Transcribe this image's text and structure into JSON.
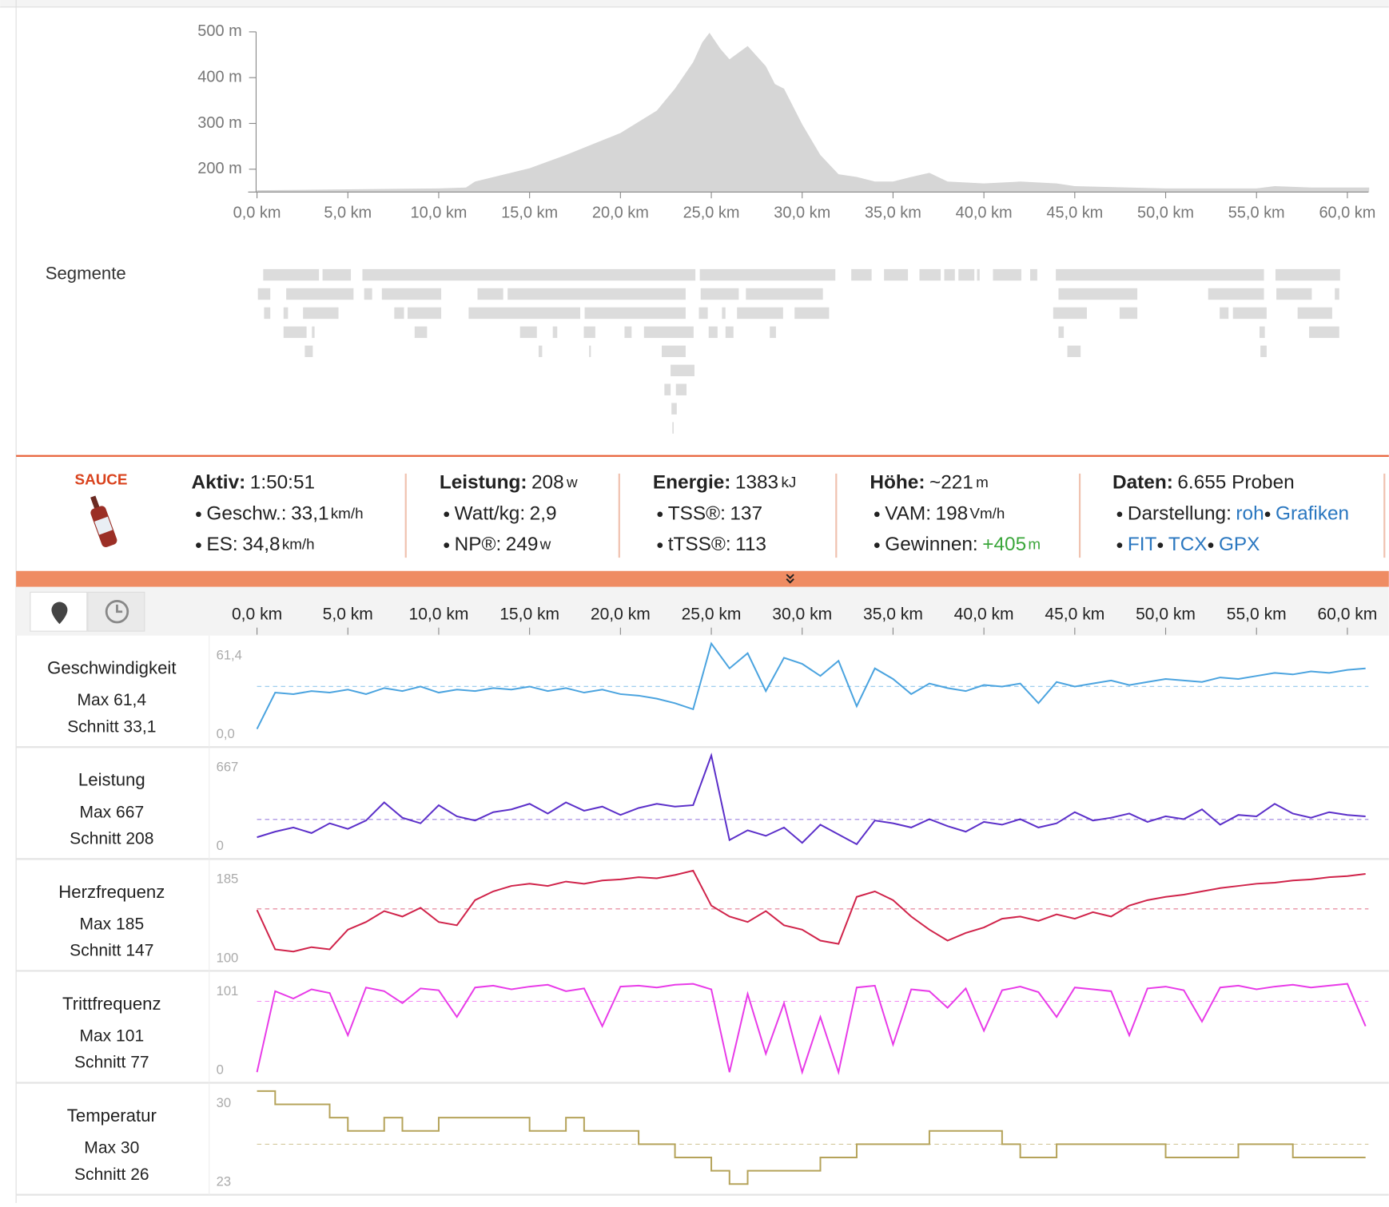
{
  "chart_data": [
    {
      "type": "area",
      "color": "#d6d6d6",
      "xlim": [
        0,
        61.2
      ],
      "ylim": [
        150,
        500
      ],
      "xticks": [
        {
          "value": 0,
          "label": "0,0 km"
        },
        {
          "value": 5,
          "label": "5,0 km"
        },
        {
          "value": 10,
          "label": "10,0 km"
        },
        {
          "value": 15,
          "label": "15,0 km"
        },
        {
          "value": 20,
          "label": "20,0 km"
        },
        {
          "value": 25,
          "label": "25,0 km"
        },
        {
          "value": 30,
          "label": "30,0 km"
        },
        {
          "value": 35,
          "label": "35,0 km"
        },
        {
          "value": 40,
          "label": "40,0 km"
        },
        {
          "value": 45,
          "label": "45,0 km"
        },
        {
          "value": 50,
          "label": "50,0 km"
        },
        {
          "value": 55,
          "label": "55,0 km"
        },
        {
          "value": 60,
          "label": "60,0 km"
        }
      ],
      "yticks": [
        {
          "value": 200,
          "label": "200 m"
        },
        {
          "value": 300,
          "label": "300 m"
        },
        {
          "value": 400,
          "label": "400 m"
        },
        {
          "value": 500,
          "label": "500 m"
        }
      ],
      "x": [
        0,
        5,
        10,
        11.5,
        12,
        15,
        17,
        20,
        22,
        23,
        24,
        24.5,
        24.9,
        25.5,
        26,
        27,
        28,
        28.5,
        29,
        30,
        31,
        32,
        33,
        34,
        35,
        36,
        37,
        38,
        40,
        42,
        44,
        45,
        48,
        50,
        55,
        56,
        58,
        61,
        61.2
      ],
      "values": [
        154,
        156,
        158,
        160,
        173,
        202,
        231,
        279,
        328,
        376,
        434,
        477,
        498,
        463,
        440,
        469,
        425,
        386,
        376,
        298,
        231,
        189,
        183,
        173,
        173,
        183,
        192,
        173,
        169,
        173,
        169,
        163,
        160,
        158,
        158,
        163,
        160,
        160,
        160
      ]
    },
    {
      "type": "line",
      "title": "Geschwindigkeit",
      "max_label": "Max 61,4",
      "avg_label": "Schnitt 33,1",
      "avg": 33.1,
      "color": "#4aa3df",
      "ylim": [
        0,
        61.4
      ],
      "yticks": [
        {
          "value": 61.4,
          "label": "61,4"
        },
        {
          "value": 0,
          "label": "0,0"
        }
      ],
      "x": [
        0,
        1,
        2,
        3,
        4,
        5,
        6,
        7,
        8,
        9,
        10,
        11,
        12,
        13,
        14,
        15,
        16,
        17,
        18,
        19,
        20,
        21,
        22,
        23,
        24,
        25,
        26,
        27,
        28,
        29,
        30,
        31,
        32,
        33,
        34,
        35,
        36,
        37,
        38,
        39,
        40,
        41,
        42,
        43,
        44,
        45,
        46,
        47,
        48,
        49,
        50,
        51,
        52,
        53,
        54,
        55,
        56,
        57,
        58,
        59,
        60,
        61
      ],
      "values": [
        5,
        29,
        28,
        30,
        29,
        31,
        28,
        32,
        30,
        33,
        29,
        31,
        30,
        32,
        31,
        33,
        30,
        32,
        29,
        31,
        28,
        27,
        25,
        22,
        18,
        61.4,
        45,
        55,
        30,
        52,
        48,
        40,
        50,
        20,
        45,
        38,
        28,
        35,
        32,
        30,
        34,
        33,
        35,
        22,
        36,
        33,
        35,
        37,
        34,
        36,
        38,
        37,
        36,
        39,
        38,
        40,
        42,
        41,
        43,
        42,
        44,
        45
      ]
    },
    {
      "type": "line",
      "title": "Leistung",
      "max_label": "Max 667",
      "avg_label": "Schnitt 208",
      "avg": 208,
      "color": "#5b2fc9",
      "ylim": [
        0,
        667
      ],
      "yticks": [
        667,
        0
      ],
      "x": [
        0,
        1,
        2,
        3,
        4,
        5,
        6,
        7,
        8,
        9,
        10,
        11,
        12,
        13,
        14,
        15,
        16,
        17,
        18,
        19,
        20,
        21,
        22,
        23,
        24,
        25,
        26,
        27,
        28,
        29,
        30,
        31,
        32,
        33,
        34,
        35,
        36,
        37,
        38,
        39,
        40,
        41,
        42,
        43,
        44,
        45,
        46,
        47,
        48,
        49,
        50,
        51,
        52,
        53,
        54,
        55,
        56,
        57,
        58,
        59,
        60,
        61
      ],
      "values": [
        80,
        120,
        150,
        110,
        180,
        140,
        200,
        330,
        220,
        180,
        310,
        230,
        200,
        260,
        280,
        320,
        250,
        330,
        270,
        300,
        240,
        290,
        320,
        300,
        310,
        667,
        60,
        130,
        90,
        150,
        40,
        170,
        100,
        30,
        200,
        180,
        150,
        210,
        160,
        120,
        190,
        170,
        210,
        150,
        180,
        260,
        200,
        220,
        250,
        190,
        230,
        210,
        280,
        170,
        240,
        230,
        320,
        250,
        220,
        260,
        240,
        230
      ]
    },
    {
      "type": "line",
      "title": "Herzfrequenz",
      "max_label": "Max 185",
      "avg_label": "Schnitt 147",
      "avg": 147,
      "color": "#d0234a",
      "ylim": [
        100,
        185
      ],
      "yticks": [
        185,
        100
      ],
      "x": [
        0,
        1,
        2,
        3,
        4,
        5,
        6,
        7,
        8,
        9,
        10,
        11,
        12,
        13,
        14,
        15,
        16,
        17,
        18,
        19,
        20,
        21,
        22,
        23,
        24,
        25,
        26,
        27,
        28,
        29,
        30,
        31,
        32,
        33,
        34,
        35,
        36,
        37,
        38,
        39,
        40,
        41,
        42,
        43,
        44,
        45,
        46,
        47,
        48,
        49,
        50,
        51,
        52,
        53,
        54,
        55,
        56,
        57,
        58,
        59,
        60,
        61
      ],
      "values": [
        146,
        110,
        108,
        112,
        110,
        128,
        135,
        145,
        140,
        148,
        135,
        132,
        155,
        163,
        168,
        170,
        168,
        172,
        170,
        173,
        174,
        176,
        175,
        178,
        182,
        150,
        140,
        135,
        145,
        132,
        128,
        118,
        115,
        158,
        163,
        155,
        140,
        128,
        118,
        125,
        130,
        138,
        140,
        136,
        142,
        138,
        144,
        140,
        150,
        155,
        158,
        160,
        163,
        166,
        168,
        170,
        171,
        173,
        174,
        176,
        177,
        179
      ]
    },
    {
      "type": "line",
      "title": "Trittfrequenz",
      "max_label": "Max 101",
      "avg_label": "Schnitt 77",
      "avg": 77,
      "color": "#e83be8",
      "ylim": [
        0,
        101
      ],
      "yticks": [
        101,
        0
      ],
      "x": [
        0,
        1,
        2,
        3,
        4,
        5,
        6,
        7,
        8,
        9,
        10,
        11,
        12,
        13,
        14,
        15,
        16,
        17,
        18,
        19,
        20,
        21,
        22,
        23,
        24,
        25,
        26,
        27,
        28,
        29,
        30,
        31,
        32,
        33,
        34,
        35,
        36,
        37,
        38,
        39,
        40,
        41,
        42,
        43,
        44,
        45,
        46,
        47,
        48,
        49,
        50,
        51,
        52,
        53,
        54,
        55,
        56,
        57,
        58,
        59,
        60,
        61
      ],
      "values": [
        0,
        88,
        80,
        90,
        86,
        40,
        92,
        88,
        75,
        91,
        89,
        60,
        92,
        94,
        90,
        93,
        95,
        88,
        91,
        50,
        93,
        94,
        92,
        95,
        96,
        90,
        0,
        85,
        20,
        75,
        0,
        60,
        0,
        92,
        94,
        30,
        90,
        88,
        70,
        91,
        45,
        89,
        93,
        87,
        60,
        92,
        90,
        88,
        40,
        91,
        93,
        89,
        55,
        92,
        94,
        90,
        93,
        95,
        92,
        94,
        96,
        50
      ]
    },
    {
      "type": "line",
      "step": true,
      "title": "Temperatur",
      "max_label": "Max 30",
      "avg_label": "Schnitt 26",
      "avg": 26,
      "color": "#b5a35a",
      "ylim": [
        23,
        30
      ],
      "yticks": [
        30,
        23
      ],
      "x": [
        0,
        1,
        2,
        3,
        4,
        5,
        6,
        7,
        8,
        9,
        10,
        11,
        12,
        13,
        14,
        15,
        16,
        17,
        18,
        19,
        20,
        21,
        22,
        23,
        24,
        25,
        26,
        27,
        28,
        29,
        30,
        31,
        32,
        33,
        34,
        35,
        36,
        37,
        38,
        39,
        40,
        41,
        42,
        43,
        44,
        45,
        46,
        47,
        48,
        49,
        50,
        51,
        52,
        53,
        54,
        55,
        56,
        57,
        58,
        59,
        60,
        61
      ],
      "values": [
        30,
        29,
        29,
        29,
        28,
        27,
        27,
        28,
        27,
        27,
        28,
        28,
        28,
        28,
        28,
        27,
        27,
        28,
        27,
        27,
        27,
        26,
        26,
        25,
        25,
        24,
        23,
        24,
        24,
        24,
        24,
        25,
        25,
        26,
        26,
        26,
        26,
        27,
        27,
        27,
        27,
        26,
        25,
        25,
        26,
        26,
        26,
        26,
        26,
        26,
        25,
        25,
        25,
        25,
        26,
        26,
        26,
        25,
        25,
        25,
        25,
        25
      ]
    }
  ],
  "stream_axis": {
    "xlim": [
      0,
      61.2
    ],
    "xticks": [
      {
        "value": 0,
        "label": "0,0 km"
      },
      {
        "value": 5,
        "label": "5,0 km"
      },
      {
        "value": 10,
        "label": "10,0 km"
      },
      {
        "value": 15,
        "label": "15,0 km"
      },
      {
        "value": 20,
        "label": "20,0 km"
      },
      {
        "value": 25,
        "label": "25,0 km"
      },
      {
        "value": 30,
        "label": "30,0 km"
      },
      {
        "value": 35,
        "label": "35,0 km"
      },
      {
        "value": 40,
        "label": "40,0 km"
      },
      {
        "value": 45,
        "label": "45,0 km"
      },
      {
        "value": 50,
        "label": "50,0 km"
      },
      {
        "value": 55,
        "label": "55,0 km"
      },
      {
        "value": 60,
        "label": "60,0 km"
      }
    ]
  },
  "segments_label": "Segmente",
  "logo": "SAUCE",
  "stats": [
    {
      "label": "Aktiv:",
      "value": "1:50:51",
      "rows": [
        {
          "label": "Geschw.:",
          "value": "33,1",
          "unit": "km/h"
        },
        {
          "label": "ES:",
          "value": "34,8",
          "unit": "km/h"
        }
      ]
    },
    {
      "label": "Leistung:",
      "value": "208",
      "unit": "w",
      "rows": [
        {
          "label": "Watt/kg:",
          "value": "2,9"
        },
        {
          "label": "NP®:",
          "value": "249",
          "unit": "w"
        }
      ]
    },
    {
      "label": "Energie:",
      "value": "1383",
      "unit": "kJ",
      "rows": [
        {
          "label": "TSS®:",
          "value": "137"
        },
        {
          "label": "tTSS®:",
          "value": "113"
        }
      ]
    },
    {
      "label": "Höhe:",
      "value": "~221",
      "unit": "m",
      "rows": [
        {
          "label": "VAM:",
          "value": "198",
          "unit": "Vm/h"
        },
        {
          "label": "Gewinnen:",
          "value": "+405",
          "unit": "m",
          "color": "#3aa63a"
        }
      ]
    },
    {
      "label": "Daten:",
      "value": "6.655 Proben",
      "rows": [
        {
          "label": "Darstellung:",
          "links": [
            "roh",
            "Grafiken"
          ]
        },
        {
          "links": [
            "FIT",
            "TCX",
            "GPX"
          ]
        }
      ]
    }
  ]
}
